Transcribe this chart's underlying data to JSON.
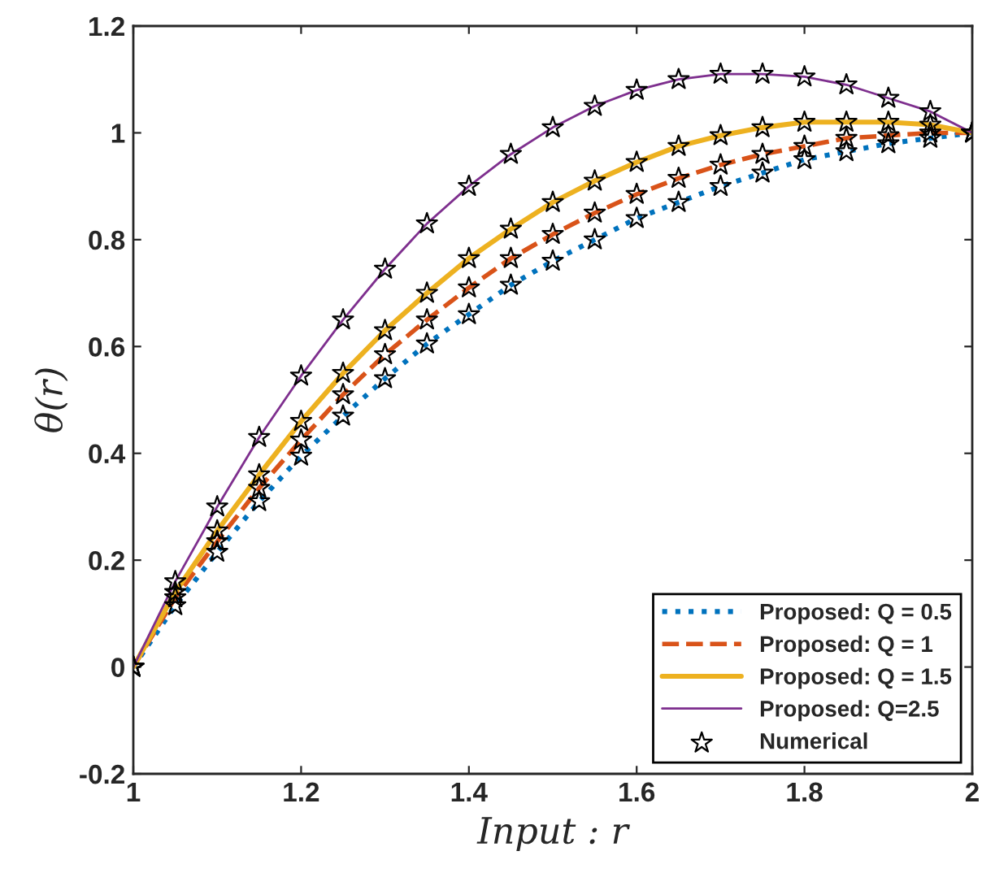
{
  "chart_data": {
    "type": "line",
    "xlabel": "Input : r",
    "ylabel": "θ(r)",
    "x": [
      1,
      1.05,
      1.1,
      1.15,
      1.2,
      1.25,
      1.3,
      1.35,
      1.4,
      1.45,
      1.5,
      1.55,
      1.6,
      1.65,
      1.7,
      1.75,
      1.8,
      1.85,
      1.9,
      1.95,
      2
    ],
    "series": [
      {
        "name": "Proposed: Q = 0.5",
        "color": "#0072bd",
        "line_style": "dotted",
        "values": [
          0,
          0.115,
          0.215,
          0.31,
          0.395,
          0.47,
          0.54,
          0.605,
          0.66,
          0.715,
          0.76,
          0.8,
          0.84,
          0.87,
          0.9,
          0.925,
          0.95,
          0.965,
          0.98,
          0.99,
          1.0
        ]
      },
      {
        "name": "Proposed: Q = 1",
        "color": "#d95319",
        "line_style": "dashed",
        "values": [
          0,
          0.13,
          0.235,
          0.335,
          0.425,
          0.51,
          0.585,
          0.65,
          0.71,
          0.765,
          0.81,
          0.85,
          0.885,
          0.915,
          0.94,
          0.96,
          0.975,
          0.99,
          0.995,
          1.0,
          1.0
        ]
      },
      {
        "name": "Proposed: Q = 1.5",
        "color": "#edb120",
        "line_style": "solid",
        "values": [
          0,
          0.14,
          0.255,
          0.36,
          0.46,
          0.55,
          0.63,
          0.7,
          0.765,
          0.82,
          0.87,
          0.91,
          0.945,
          0.975,
          0.995,
          1.01,
          1.02,
          1.02,
          1.02,
          1.015,
          1.0
        ]
      },
      {
        "name": "Proposed: Q=2.5",
        "color": "#7e2f8e",
        "line_style": "solid",
        "values": [
          0,
          0.16,
          0.3,
          0.43,
          0.545,
          0.65,
          0.745,
          0.83,
          0.9,
          0.96,
          1.01,
          1.05,
          1.08,
          1.1,
          1.11,
          1.11,
          1.105,
          1.09,
          1.065,
          1.04,
          1.0
        ]
      },
      {
        "name": "Numerical",
        "type": "scatter",
        "marker": "star",
        "color": "#000000",
        "x": [
          1,
          1.05,
          1.1,
          1.15,
          1.2,
          1.25,
          1.3,
          1.35,
          1.4,
          1.45,
          1.5,
          1.55,
          1.6,
          1.65,
          1.7,
          1.75,
          1.8,
          1.85,
          1.9,
          1.95,
          2,
          1,
          1.05,
          1.1,
          1.15,
          1.2,
          1.25,
          1.3,
          1.35,
          1.4,
          1.45,
          1.5,
          1.55,
          1.6,
          1.65,
          1.7,
          1.75,
          1.8,
          1.85,
          1.9,
          1.95,
          2,
          1,
          1.05,
          1.1,
          1.15,
          1.2,
          1.25,
          1.3,
          1.35,
          1.4,
          1.45,
          1.5,
          1.55,
          1.6,
          1.65,
          1.7,
          1.75,
          1.8,
          1.85,
          1.9,
          1.95,
          2,
          1,
          1.05,
          1.1,
          1.15,
          1.2,
          1.25,
          1.3,
          1.35,
          1.4,
          1.45,
          1.5,
          1.55,
          1.6,
          1.65,
          1.7,
          1.75,
          1.8,
          1.85,
          1.9,
          1.95,
          2
        ],
        "values": [
          0,
          0.115,
          0.215,
          0.31,
          0.395,
          0.47,
          0.54,
          0.605,
          0.66,
          0.715,
          0.76,
          0.8,
          0.84,
          0.87,
          0.9,
          0.925,
          0.95,
          0.965,
          0.98,
          0.99,
          1.0,
          0,
          0.13,
          0.235,
          0.335,
          0.425,
          0.51,
          0.585,
          0.65,
          0.71,
          0.765,
          0.81,
          0.85,
          0.885,
          0.915,
          0.94,
          0.96,
          0.975,
          0.99,
          0.995,
          1.0,
          1.0,
          0,
          0.14,
          0.255,
          0.36,
          0.46,
          0.55,
          0.63,
          0.7,
          0.765,
          0.82,
          0.87,
          0.91,
          0.945,
          0.975,
          0.995,
          1.01,
          1.02,
          1.02,
          1.02,
          1.015,
          1.0,
          0,
          0.16,
          0.3,
          0.43,
          0.545,
          0.65,
          0.745,
          0.83,
          0.9,
          0.96,
          1.01,
          1.05,
          1.08,
          1.1,
          1.11,
          1.11,
          1.105,
          1.09,
          1.065,
          1.04,
          1.0
        ]
      }
    ],
    "xlim": [
      1,
      2
    ],
    "xticks": [
      1,
      1.2,
      1.4,
      1.6,
      1.8,
      2
    ],
    "ylim": [
      -0.2,
      1.2
    ],
    "yticks": [
      -0.2,
      0,
      0.2,
      0.4,
      0.6,
      0.8,
      1,
      1.2
    ],
    "grid": false,
    "legend": "bottom right"
  }
}
